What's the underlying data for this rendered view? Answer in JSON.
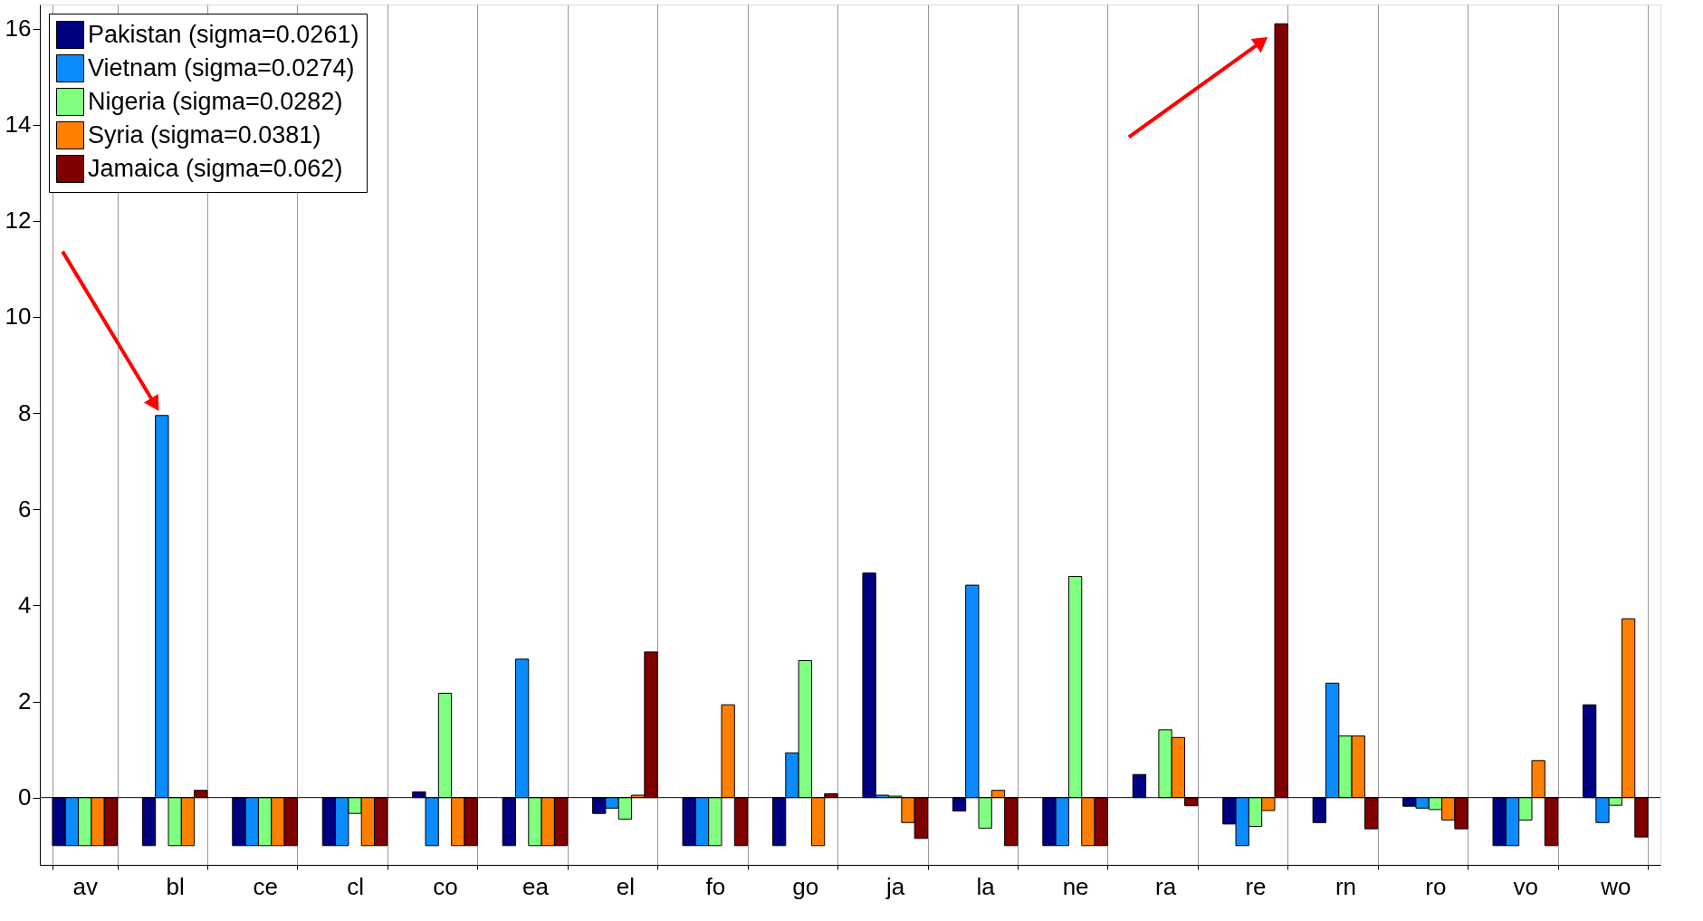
{
  "chart_data": {
    "type": "bar",
    "categories": [
      "av",
      "bl",
      "ce",
      "cl",
      "co",
      "ea",
      "el",
      "fo",
      "go",
      "ja",
      "la",
      "ne",
      "ra",
      "re",
      "rn",
      "ro",
      "vo",
      "wo"
    ],
    "series": [
      {
        "name": "Pakistan (sigma=0.0261)",
        "color": "#000080",
        "values": [
          -1,
          -1,
          -1,
          -1,
          0.12,
          -1,
          -0.33,
          -1,
          -1,
          4.67,
          -0.28,
          -1,
          0.48,
          -0.55,
          -0.52,
          -0.18,
          -1,
          1.93
        ]
      },
      {
        "name": "Vietnam (sigma=0.0274)",
        "color": "#0a8cff",
        "values": [
          -1,
          7.95,
          -1,
          -1,
          -1,
          2.88,
          -0.22,
          -1,
          0.93,
          0.05,
          4.42,
          -1,
          null,
          -1,
          2.38,
          -0.22,
          -1,
          -0.52
        ]
      },
      {
        "name": "Nigeria (sigma=0.0282)",
        "color": "#80ff80",
        "values": [
          -1,
          -1,
          -1,
          -0.33,
          2.17,
          -1,
          -0.45,
          -1,
          2.85,
          0.03,
          -0.64,
          4.6,
          1.41,
          -0.6,
          1.28,
          -0.25,
          -0.47,
          -0.16
        ]
      },
      {
        "name": "Syria (sigma=0.0381)",
        "color": "#ff8000",
        "values": [
          -1,
          -1,
          -1,
          -1,
          -1,
          -1,
          0.05,
          1.93,
          -1,
          -0.52,
          0.15,
          -1,
          1.25,
          -0.27,
          1.28,
          -0.47,
          0.77,
          3.72
        ]
      },
      {
        "name": "Jamaica (sigma=0.062)",
        "color": "#800000",
        "values": [
          -1,
          0.15,
          -1,
          -1,
          -1,
          -1,
          3.03,
          -1,
          0.08,
          -0.85,
          -1,
          -1,
          -0.17,
          16.1,
          -0.65,
          -0.65,
          -1,
          -0.82
        ]
      }
    ],
    "ylim": [
      -1.4,
      16.5
    ],
    "yticks": [
      0,
      2,
      4,
      6,
      8,
      10,
      12,
      14,
      16
    ],
    "ref_lines": [
      {
        "axis": "y",
        "value": 0,
        "color": "#000000"
      }
    ],
    "grid": "x",
    "legend": "top left"
  }
}
